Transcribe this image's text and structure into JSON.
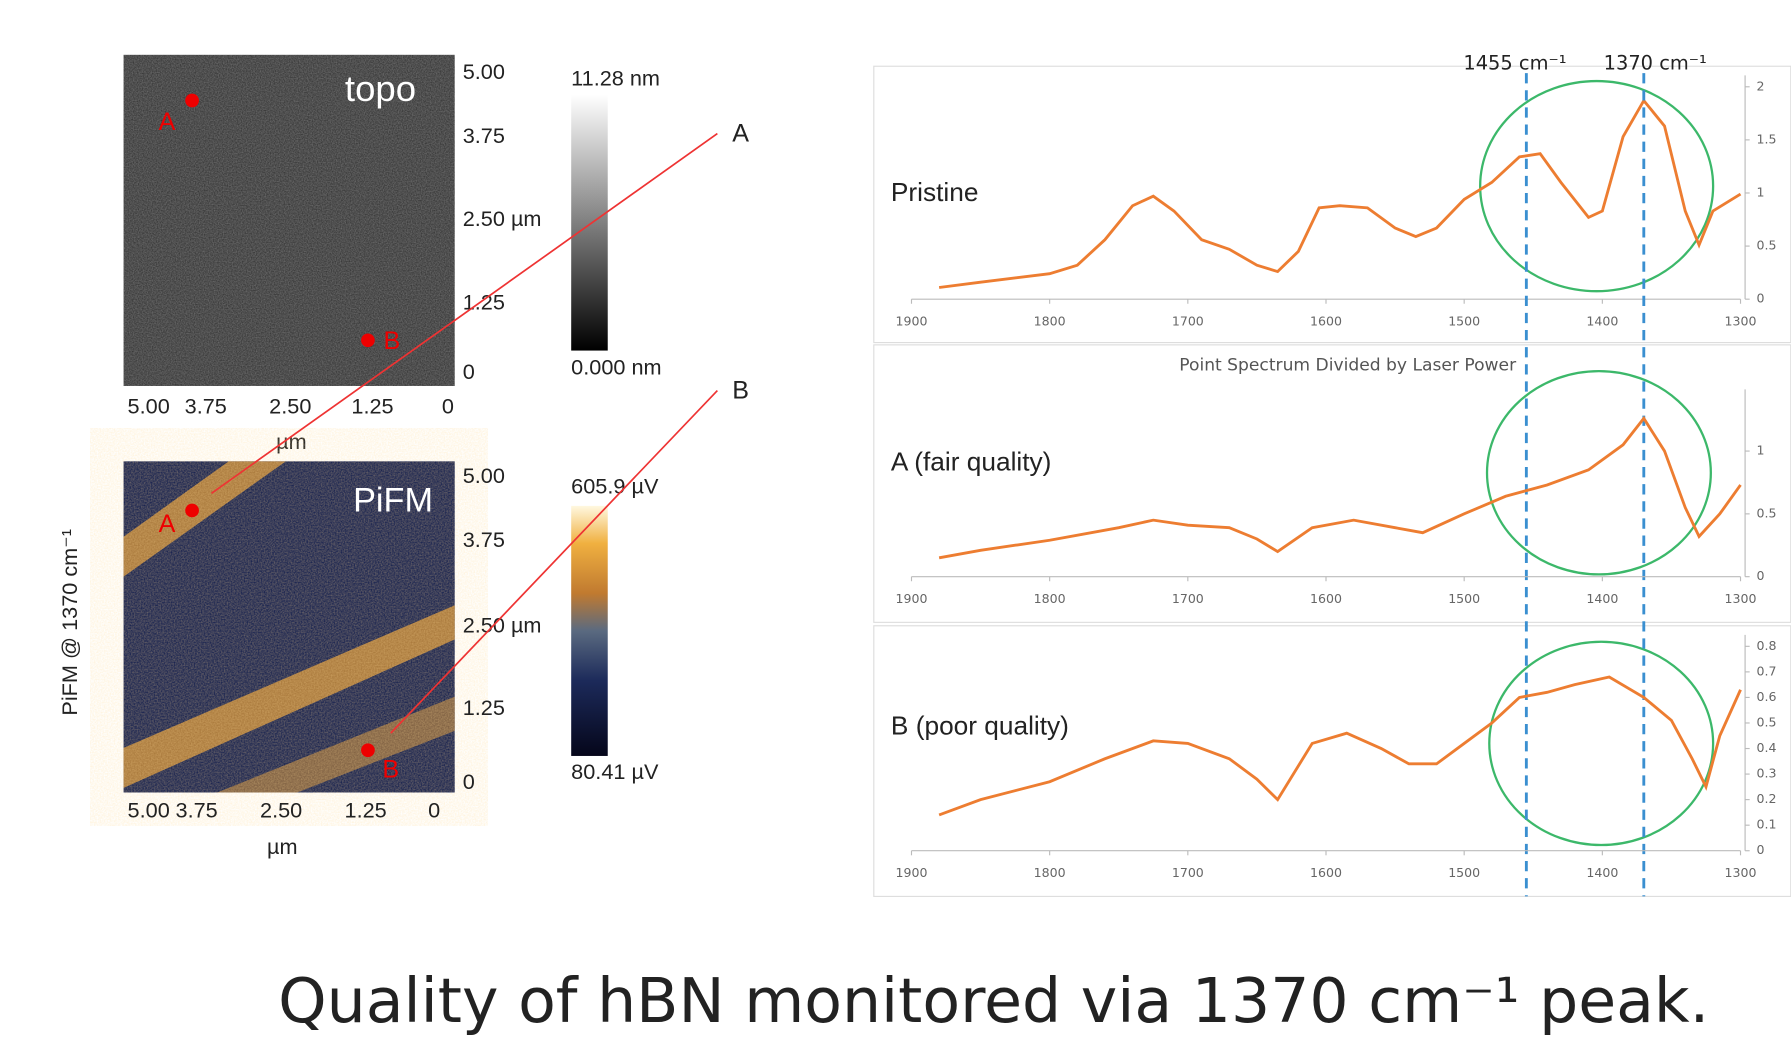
{
  "chart_data": [
    {
      "type": "line",
      "x": [
        1880,
        1850,
        1800,
        1780,
        1760,
        1740,
        1725,
        1710,
        1690,
        1670,
        1650,
        1635,
        1620,
        1605,
        1590,
        1570,
        1550,
        1535,
        1520,
        1500,
        1480,
        1460,
        1445,
        1430,
        1410,
        1400,
        1385,
        1370,
        1355,
        1340,
        1330,
        1320,
        1300
      ],
      "series": [
        {
          "name": "Pristine",
          "color": "#ed7d31",
          "values": [
            0.11,
            0.16,
            0.24,
            0.32,
            0.56,
            0.88,
            0.97,
            0.83,
            0.56,
            0.47,
            0.32,
            0.26,
            0.45,
            0.86,
            0.88,
            0.86,
            0.67,
            0.59,
            0.67,
            0.94,
            1.1,
            1.34,
            1.37,
            1.1,
            0.77,
            0.83,
            1.53,
            1.87,
            1.63,
            0.83,
            0.51,
            0.83,
            0.99
          ]
        }
      ],
      "xlim": [
        1900,
        1300
      ],
      "xticks": [
        1900,
        1800,
        1700,
        1600,
        1500,
        1400,
        1300
      ],
      "ylim": [
        0,
        2
      ],
      "yticks": [
        0,
        0.5,
        1,
        1.5,
        2
      ],
      "annotations": [
        {
          "x": 1455,
          "text": "1455 cm⁻¹"
        },
        {
          "x": 1370,
          "text": "1370 cm⁻¹"
        }
      ]
    },
    {
      "type": "line",
      "title": "Point Spectrum Divided by Laser Power",
      "x": [
        1880,
        1850,
        1800,
        1750,
        1725,
        1700,
        1670,
        1650,
        1635,
        1610,
        1580,
        1550,
        1530,
        1500,
        1470,
        1440,
        1410,
        1385,
        1370,
        1355,
        1340,
        1330,
        1315,
        1300
      ],
      "series": [
        {
          "name": "A (fair quality)",
          "color": "#ed7d31",
          "values": [
            0.15,
            0.21,
            0.29,
            0.39,
            0.45,
            0.41,
            0.39,
            0.3,
            0.2,
            0.39,
            0.45,
            0.39,
            0.35,
            0.5,
            0.64,
            0.73,
            0.85,
            1.05,
            1.26,
            1.0,
            0.55,
            0.32,
            0.5,
            0.73
          ]
        }
      ],
      "xlim": [
        1900,
        1300
      ],
      "xticks": [
        1900,
        1800,
        1700,
        1600,
        1500,
        1400,
        1300
      ],
      "ylim": [
        0,
        1.4
      ],
      "yticks": [
        0,
        0.5,
        1
      ]
    },
    {
      "type": "line",
      "x": [
        1880,
        1850,
        1800,
        1760,
        1725,
        1700,
        1670,
        1650,
        1635,
        1610,
        1585,
        1560,
        1540,
        1520,
        1500,
        1480,
        1460,
        1440,
        1420,
        1395,
        1370,
        1350,
        1335,
        1325,
        1315,
        1300
      ],
      "series": [
        {
          "name": "B (poor quality)",
          "color": "#ed7d31",
          "values": [
            0.14,
            0.2,
            0.27,
            0.36,
            0.43,
            0.42,
            0.36,
            0.28,
            0.2,
            0.42,
            0.46,
            0.4,
            0.34,
            0.34,
            0.42,
            0.5,
            0.6,
            0.62,
            0.65,
            0.68,
            0.6,
            0.51,
            0.36,
            0.25,
            0.45,
            0.63
          ]
        }
      ],
      "xlim": [
        1900,
        1300
      ],
      "xticks": [
        1900,
        1800,
        1700,
        1600,
        1500,
        1400,
        1300
      ],
      "ylim": [
        0,
        0.8
      ],
      "yticks": [
        0,
        0.1,
        0.2,
        0.3,
        0.4,
        0.5,
        0.6,
        0.7,
        0.8
      ]
    }
  ],
  "maps": [
    {
      "label": "topo",
      "yticks": [
        "5.00",
        "3.75",
        "2.50 µm",
        "1.25",
        "0"
      ],
      "xticks": [
        "5.00",
        "3.75",
        "2.50",
        "1.25",
        "0"
      ],
      "xlabel": "µm",
      "colorbar": [
        "11.28 nm",
        "0.000 nm"
      ],
      "points": [
        "A",
        "B"
      ]
    },
    {
      "label": "PiFM",
      "ylabel": "PiFM @ 1370 cm⁻¹",
      "yticks": [
        "5.00",
        "3.75",
        "2.50 µm",
        "1.25",
        "0"
      ],
      "xticks": [
        "5.00",
        "3.75",
        "2.50",
        "1.25",
        "0"
      ],
      "xlabel": "µm",
      "colorbar": [
        "605.9 µV",
        "80.41 µV"
      ],
      "points": [
        "A",
        "B"
      ]
    }
  ],
  "callouts": [
    "A",
    "B"
  ],
  "caption": "Quality of hBN monitored via 1370 cm⁻¹ peak."
}
